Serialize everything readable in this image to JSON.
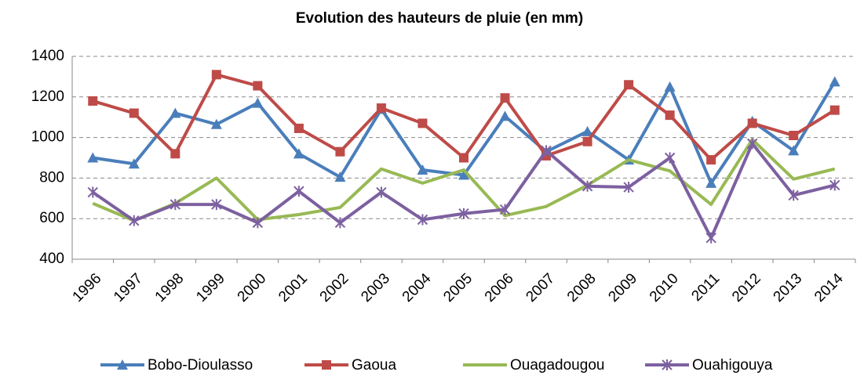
{
  "chart_data": {
    "type": "line",
    "title": "Evolution des hauteurs de pluie (en mm)",
    "categories": [
      "1996",
      "1997",
      "1998",
      "1999",
      "2000",
      "2001",
      "2002",
      "2003",
      "2004",
      "2005",
      "2006",
      "2007",
      "2008",
      "2009",
      "2010",
      "2011",
      "2012",
      "2013",
      "2014"
    ],
    "series": [
      {
        "name": "Bobo-Dioulasso",
        "color": "#4a7ebb",
        "marker": "triangle",
        "values": [
          900,
          870,
          1120,
          1065,
          1170,
          920,
          805,
          1140,
          840,
          815,
          1105,
          930,
          1030,
          890,
          1250,
          775,
          1080,
          935,
          1275
        ]
      },
      {
        "name": "Gaoua",
        "color": "#be4b48",
        "marker": "square",
        "values": [
          1180,
          1120,
          920,
          1310,
          1255,
          1045,
          930,
          1145,
          1070,
          900,
          1195,
          910,
          980,
          1260,
          1110,
          890,
          1070,
          1010,
          1135
        ]
      },
      {
        "name": "Ouagadougou",
        "color": "#98b954",
        "marker": "none",
        "values": [
          675,
          590,
          675,
          800,
          595,
          620,
          655,
          845,
          775,
          840,
          615,
          660,
          765,
          890,
          835,
          670,
          990,
          795,
          845
        ]
      },
      {
        "name": "Ouahigouya",
        "color": "#7d60a0",
        "marker": "star",
        "values": [
          730,
          590,
          670,
          670,
          580,
          735,
          580,
          730,
          595,
          625,
          645,
          935,
          760,
          755,
          900,
          505,
          970,
          715,
          765
        ]
      }
    ],
    "ylim": [
      400,
      1400
    ],
    "yticks": [
      400,
      600,
      800,
      1000,
      1200,
      1400
    ],
    "grid": true,
    "legend": "bottom"
  }
}
